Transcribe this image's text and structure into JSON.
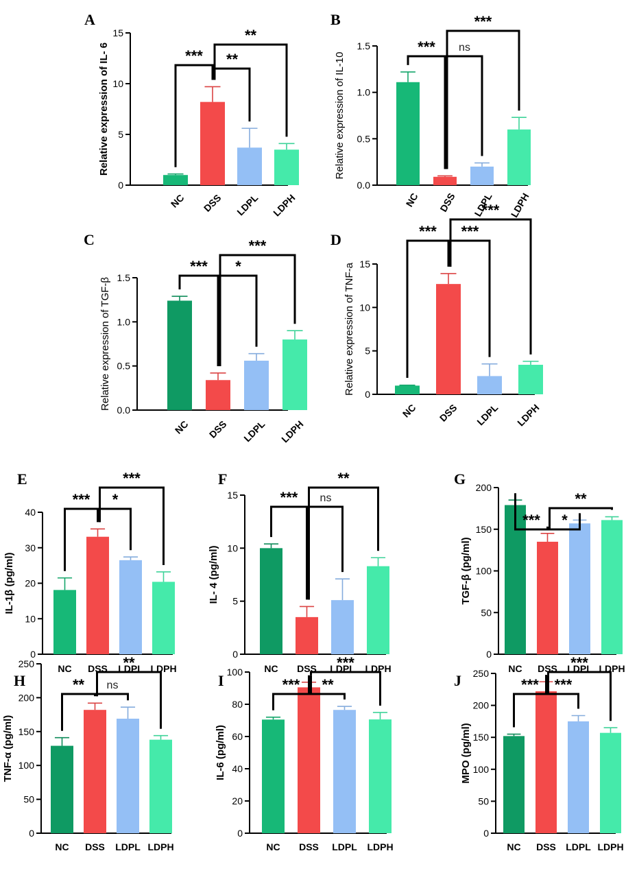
{
  "colors": {
    "NC_green": "#17b877",
    "NC_darkgreen": "#0f9a63",
    "DSS_red": "#f34a4a",
    "LDPL_blue": "#94bff5",
    "LDPH_mint": "#45eaaa"
  },
  "chart_data": [
    {
      "id": "A",
      "type": "bar",
      "panel_label": "A",
      "ylabel": "Relative expression of IL- 6",
      "categories": [
        "NC",
        "DSS",
        "LDPL",
        "LDPH"
      ],
      "values": [
        1.0,
        8.2,
        3.7,
        3.5
      ],
      "errors": [
        0.1,
        1.5,
        1.9,
        0.6
      ],
      "ylim": [
        0,
        15
      ],
      "yticks": [
        0,
        5,
        10,
        15
      ],
      "ytick_labels": [
        "0",
        "5",
        "10",
        "15"
      ],
      "colors": [
        "#17b877",
        "#f34a4a",
        "#94bff5",
        "#45eaaa"
      ],
      "significance": [
        {
          "from": 0,
          "to": 1,
          "label": "***"
        },
        {
          "from": 1,
          "to": 2,
          "label": "**"
        },
        {
          "from": 1,
          "to": 3,
          "label": "**"
        }
      ]
    },
    {
      "id": "B",
      "type": "bar",
      "panel_label": "B",
      "ylabel": "Relative expression of IL-10",
      "categories": [
        "NC",
        "DSS",
        "LDPL",
        "LDPH"
      ],
      "values": [
        1.11,
        0.09,
        0.2,
        0.6
      ],
      "errors": [
        0.11,
        0.01,
        0.04,
        0.13
      ],
      "ylim": [
        0,
        1.5
      ],
      "yticks": [
        0,
        0.5,
        1.0,
        1.5
      ],
      "ytick_labels": [
        "0.0",
        "0.5",
        "1.0",
        "1.5"
      ],
      "colors": [
        "#17b877",
        "#f34a4a",
        "#94bff5",
        "#45eaaa"
      ],
      "significance": [
        {
          "from": 0,
          "to": 1,
          "label": "***"
        },
        {
          "from": 1,
          "to": 2,
          "label": "ns"
        },
        {
          "from": 1,
          "to": 3,
          "label": "***"
        }
      ]
    },
    {
      "id": "C",
      "type": "bar",
      "panel_label": "C",
      "ylabel": "Relative expression of TGF-β",
      "categories": [
        "NC",
        "DSS",
        "LDPL",
        "LDPH"
      ],
      "values": [
        1.24,
        0.34,
        0.56,
        0.8
      ],
      "errors": [
        0.05,
        0.08,
        0.08,
        0.1
      ],
      "ylim": [
        0,
        1.5
      ],
      "yticks": [
        0,
        0.5,
        1.0,
        1.5
      ],
      "ytick_labels": [
        "0.0",
        "0.5",
        "1.0",
        "1.5"
      ],
      "colors": [
        "#0f9a63",
        "#f34a4a",
        "#94bff5",
        "#45eaaa"
      ],
      "significance": [
        {
          "from": 0,
          "to": 1,
          "label": "***"
        },
        {
          "from": 1,
          "to": 2,
          "label": "*"
        },
        {
          "from": 1,
          "to": 3,
          "label": "***"
        }
      ]
    },
    {
      "id": "D",
      "type": "bar",
      "panel_label": "D",
      "ylabel": "Relative expression of TNF-a",
      "categories": [
        "NC",
        "DSS",
        "LDPL",
        "LDPH"
      ],
      "values": [
        1.0,
        12.7,
        2.1,
        3.4
      ],
      "errors": [
        0.05,
        1.2,
        1.4,
        0.4
      ],
      "ylim": [
        0,
        15
      ],
      "yticks": [
        0,
        5,
        10,
        15
      ],
      "ytick_labels": [
        "0",
        "5",
        "10",
        "15"
      ],
      "colors": [
        "#17b877",
        "#f34a4a",
        "#94bff5",
        "#45eaaa"
      ],
      "significance": [
        {
          "from": 0,
          "to": 1,
          "label": "***"
        },
        {
          "from": 1,
          "to": 2,
          "label": "***"
        },
        {
          "from": 1,
          "to": 3,
          "label": "***"
        }
      ]
    },
    {
      "id": "E",
      "type": "bar",
      "panel_label": "E",
      "ylabel": "IL-1β (pg/ml)",
      "categories": [
        "NC",
        "DSS",
        "LDPL",
        "LDPH"
      ],
      "values": [
        18.1,
        33.1,
        26.5,
        20.4
      ],
      "errors": [
        3.4,
        2.2,
        0.9,
        2.8
      ],
      "ylim": [
        0,
        40
      ],
      "yticks": [
        0,
        10,
        20,
        30,
        40
      ],
      "ytick_labels": [
        "0",
        "10",
        "20",
        "30",
        "40"
      ],
      "colors": [
        "#17b877",
        "#f34a4a",
        "#94bff5",
        "#45eaaa"
      ],
      "significance": [
        {
          "from": 0,
          "to": 1,
          "label": "***"
        },
        {
          "from": 1,
          "to": 2,
          "label": "*"
        },
        {
          "from": 1,
          "to": 3,
          "label": "***"
        }
      ]
    },
    {
      "id": "F",
      "type": "bar",
      "panel_label": "F",
      "ylabel": "IL- 4 (pg/ml)",
      "categories": [
        "NC",
        "DSS",
        "LDPL",
        "LDPH"
      ],
      "values": [
        10.0,
        3.5,
        5.1,
        8.3
      ],
      "errors": [
        0.4,
        1.0,
        2.0,
        0.8
      ],
      "ylim": [
        0,
        15
      ],
      "yticks": [
        0,
        5,
        10,
        15
      ],
      "ytick_labels": [
        "0",
        "5",
        "10",
        "15"
      ],
      "colors": [
        "#0f9a63",
        "#f34a4a",
        "#94bff5",
        "#45eaaa"
      ],
      "significance": [
        {
          "from": 0,
          "to": 1,
          "label": "***"
        },
        {
          "from": 1,
          "to": 2,
          "label": "ns"
        },
        {
          "from": 1,
          "to": 3,
          "label": "**"
        }
      ]
    },
    {
      "id": "G",
      "type": "bar",
      "panel_label": "G",
      "ylabel": "TGF-β (pg/ml)",
      "categories": [
        "NC",
        "DSS",
        "LDPL",
        "LDPH"
      ],
      "values": [
        179,
        135,
        157,
        161
      ],
      "errors": [
        6,
        10,
        4,
        4
      ],
      "ylim": [
        0,
        200
      ],
      "yticks": [
        0,
        50,
        100,
        150,
        200
      ],
      "ytick_labels": [
        "0",
        "50",
        "100",
        "150",
        "200"
      ],
      "colors": [
        "#0f9a63",
        "#f34a4a",
        "#94bff5",
        "#45eaaa"
      ],
      "significance": [
        {
          "from": 0,
          "to": 1,
          "label": "***"
        },
        {
          "from": 1,
          "to": 2,
          "label": "*"
        },
        {
          "from": 1,
          "to": 3,
          "label": "**"
        }
      ]
    },
    {
      "id": "H",
      "type": "bar",
      "panel_label": "H",
      "ylabel": "TNF-α (pg/ml)",
      "categories": [
        "NC",
        "DSS",
        "LDPL",
        "LDPH"
      ],
      "values": [
        129,
        182,
        169,
        138
      ],
      "errors": [
        12,
        10,
        17,
        6
      ],
      "ylim": [
        0,
        250
      ],
      "yticks": [
        0,
        50,
        100,
        150,
        200,
        250
      ],
      "ytick_labels": [
        "0",
        "50",
        "100",
        "150",
        "200",
        "250"
      ],
      "colors": [
        "#0f9a63",
        "#f34a4a",
        "#94bff5",
        "#45eaaa"
      ],
      "significance": [
        {
          "from": 0,
          "to": 1,
          "label": "**"
        },
        {
          "from": 1,
          "to": 2,
          "label": "ns"
        },
        {
          "from": 1,
          "to": 3,
          "label": "**"
        }
      ]
    },
    {
      "id": "I",
      "type": "bar",
      "panel_label": "I",
      "ylabel": "IL-6 (pg/ml)",
      "categories": [
        "NC",
        "DSS",
        "LDPL",
        "LDPH"
      ],
      "values": [
        70.5,
        90.5,
        76.5,
        70.6
      ],
      "errors": [
        1.5,
        3.2,
        2.2,
        4.3
      ],
      "ylim": [
        0,
        100
      ],
      "yticks": [
        0,
        20,
        40,
        60,
        80,
        100
      ],
      "ytick_labels": [
        "0",
        "20",
        "40",
        "60",
        "80",
        "100"
      ],
      "colors": [
        "#17b877",
        "#f34a4a",
        "#94bff5",
        "#45eaaa"
      ],
      "significance": [
        {
          "from": 0,
          "to": 1,
          "label": "***"
        },
        {
          "from": 1,
          "to": 2,
          "label": "**"
        },
        {
          "from": 1,
          "to": 3,
          "label": "***"
        }
      ]
    },
    {
      "id": "J",
      "type": "bar",
      "panel_label": "J",
      "ylabel": "MPO (pg/ml)",
      "categories": [
        "NC",
        "DSS",
        "LDPL",
        "LDPH"
      ],
      "values": [
        152,
        222,
        175,
        157
      ],
      "errors": [
        3,
        15,
        9,
        8
      ],
      "ylim": [
        0,
        250
      ],
      "yticks": [
        0,
        50,
        100,
        150,
        200,
        250
      ],
      "ytick_labels": [
        "0",
        "50",
        "100",
        "150",
        "200",
        "250"
      ],
      "colors": [
        "#0f9a63",
        "#f34a4a",
        "#94bff5",
        "#45eaaa"
      ],
      "significance": [
        {
          "from": 0,
          "to": 1,
          "label": "***"
        },
        {
          "from": 1,
          "to": 2,
          "label": "***"
        },
        {
          "from": 1,
          "to": 3,
          "label": "***"
        }
      ]
    }
  ]
}
